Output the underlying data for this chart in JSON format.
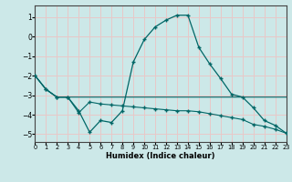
{
  "xlabel": "Humidex (Indice chaleur)",
  "xlim": [
    0,
    23
  ],
  "ylim": [
    -5.4,
    1.6
  ],
  "yticks": [
    1,
    0,
    -1,
    -2,
    -3,
    -4,
    -5
  ],
  "xticks": [
    0,
    1,
    2,
    3,
    4,
    5,
    6,
    7,
    8,
    9,
    10,
    11,
    12,
    13,
    14,
    15,
    16,
    17,
    18,
    19,
    20,
    21,
    22,
    23
  ],
  "bg_color": "#cce8e8",
  "grid_color": "#e8c8c8",
  "line_color": "#006666",
  "line1_x": [
    0,
    1,
    2,
    3,
    4,
    5,
    6,
    7,
    8,
    9,
    10,
    11,
    12,
    13,
    14,
    15,
    16,
    17,
    18,
    19,
    20,
    21,
    22,
    23
  ],
  "line1_y": [
    -2.0,
    -2.7,
    -3.1,
    -3.1,
    -3.8,
    -4.9,
    -4.3,
    -4.4,
    -3.8,
    -1.3,
    -0.15,
    0.5,
    0.85,
    1.1,
    1.1,
    -0.55,
    -1.4,
    -2.15,
    -2.95,
    -3.1,
    -3.65,
    -4.3,
    -4.55,
    -4.95
  ],
  "line2_x": [
    0,
    1,
    2,
    3,
    4,
    5,
    6,
    7,
    8,
    9,
    10,
    11,
    12,
    13,
    14,
    15,
    16,
    17,
    18,
    19,
    20,
    21,
    22,
    23
  ],
  "line2_y": [
    -2.0,
    -2.7,
    -3.1,
    -3.1,
    -3.1,
    -3.1,
    -3.1,
    -3.1,
    -3.1,
    -3.1,
    -3.1,
    -3.1,
    -3.1,
    -3.1,
    -3.1,
    -3.1,
    -3.1,
    -3.1,
    -3.1,
    -3.1,
    -3.1,
    -3.1,
    -3.1,
    -3.1
  ],
  "line3_x": [
    0,
    1,
    2,
    3,
    4,
    5,
    6,
    7,
    8,
    9,
    10,
    11,
    12,
    13,
    14,
    15,
    16,
    17,
    18,
    19,
    20,
    21,
    22,
    23
  ],
  "line3_y": [
    -2.0,
    -2.7,
    -3.1,
    -3.1,
    -3.9,
    -3.35,
    -3.45,
    -3.5,
    -3.55,
    -3.6,
    -3.65,
    -3.7,
    -3.75,
    -3.8,
    -3.8,
    -3.85,
    -3.95,
    -4.05,
    -4.15,
    -4.25,
    -4.5,
    -4.6,
    -4.75,
    -4.95
  ]
}
